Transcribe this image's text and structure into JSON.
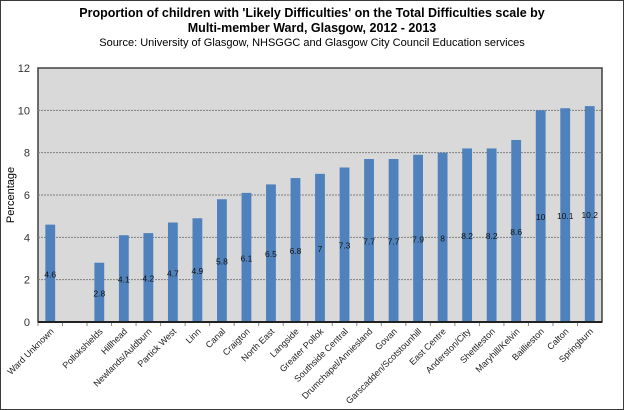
{
  "chart_data": {
    "type": "bar",
    "title": "Proportion of children with 'Likely Difficulties' on the Total Difficulties scale by",
    "title_line2": "Multi-member Ward, Glasgow, 2012 - 2013",
    "subtitle": "Source: University of Glasgow, NHSGGC and Glasgow City Council Education services",
    "xlabel": "",
    "ylabel": "Percentage",
    "ylim": [
      0,
      12
    ],
    "yticks": [
      0,
      2,
      4,
      6,
      8,
      10,
      12
    ],
    "grid": true,
    "legend": "none",
    "categories": [
      "Ward Unknown",
      "",
      "Pollokshields",
      "Hillhead",
      "Newlands/Auldburn",
      "Partick West",
      "Linn",
      "Canal",
      "Craigton",
      "North East",
      "Langside",
      "Greater Pollok",
      "Southside Central",
      "Drumchapel/Anniesland",
      "Govan",
      "Garscadden/Scotstounhill",
      "East Centre",
      "Anderston/City",
      "Shettleston",
      "Maryhill/Kelvin",
      "Baillieston",
      "Calton",
      "Springburn"
    ],
    "values": [
      4.6,
      null,
      2.8,
      4.1,
      4.2,
      4.7,
      4.9,
      5.8,
      6.1,
      6.5,
      6.8,
      7,
      7.3,
      7.7,
      7.7,
      7.9,
      8,
      8.2,
      8.2,
      8.6,
      10,
      10.1,
      10.2
    ],
    "data_labels": [
      "4.6",
      "",
      "2.8",
      "4.1",
      "4.2",
      "4.7",
      "4.9",
      "5.8",
      "6.1",
      "6.5",
      "6.8",
      "7",
      "7.3",
      "7.7",
      "7.7",
      "7.9",
      "8",
      "8.2",
      "8.2",
      "8.6",
      "10",
      "10.1",
      "10.2"
    ],
    "colors": {
      "bar": "#4f81bd",
      "plot_bg": "#d9d9d9",
      "grid": "#7f7f7f"
    }
  }
}
